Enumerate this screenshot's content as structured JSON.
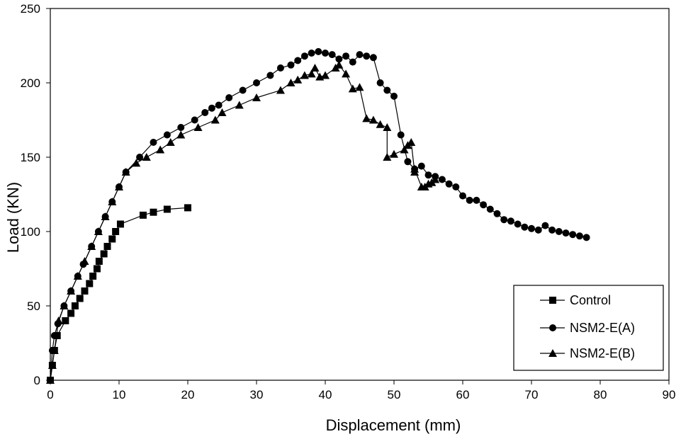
{
  "chart_data": {
    "type": "line",
    "title": "",
    "xlabel": "Displacement (mm)",
    "ylabel": "Load (KN)",
    "xlim": [
      0,
      90
    ],
    "ylim": [
      0,
      250
    ],
    "x_ticks": [
      0,
      10,
      20,
      30,
      40,
      50,
      60,
      70,
      80,
      90
    ],
    "y_ticks": [
      0,
      50,
      100,
      150,
      200,
      250
    ],
    "grid": false,
    "legend_position": "bottom-right",
    "series": [
      {
        "name": "Control",
        "marker": "square",
        "color": "#000000",
        "points": [
          [
            0,
            0
          ],
          [
            0.3,
            10
          ],
          [
            0.6,
            20
          ],
          [
            1,
            30
          ],
          [
            2.2,
            40
          ],
          [
            3,
            45
          ],
          [
            3.6,
            50
          ],
          [
            4.3,
            55
          ],
          [
            5,
            60
          ],
          [
            5.7,
            65
          ],
          [
            6.2,
            70
          ],
          [
            6.8,
            75
          ],
          [
            7.1,
            80
          ],
          [
            7.8,
            85
          ],
          [
            8.3,
            90
          ],
          [
            9,
            95
          ],
          [
            9.5,
            100
          ],
          [
            10.2,
            105
          ],
          [
            13.5,
            111
          ],
          [
            15,
            113
          ],
          [
            17,
            115
          ],
          [
            20,
            116
          ]
        ]
      },
      {
        "name": "NSM2-E(A)",
        "marker": "circle",
        "color": "#000000",
        "points": [
          [
            0,
            0
          ],
          [
            0.3,
            20
          ],
          [
            0.6,
            30
          ],
          [
            1.1,
            38
          ],
          [
            2,
            50
          ],
          [
            3,
            60
          ],
          [
            4,
            70
          ],
          [
            4.8,
            78
          ],
          [
            6,
            90
          ],
          [
            7,
            100
          ],
          [
            8,
            110
          ],
          [
            9,
            120
          ],
          [
            10,
            130
          ],
          [
            11,
            140
          ],
          [
            13,
            150
          ],
          [
            15,
            160
          ],
          [
            17,
            165
          ],
          [
            19,
            170
          ],
          [
            21,
            175
          ],
          [
            22.5,
            180
          ],
          [
            23.5,
            183
          ],
          [
            24.5,
            185
          ],
          [
            26,
            190
          ],
          [
            28,
            195
          ],
          [
            30,
            200
          ],
          [
            32,
            205
          ],
          [
            33.5,
            210
          ],
          [
            35,
            212
          ],
          [
            36,
            215
          ],
          [
            37,
            218
          ],
          [
            38,
            220
          ],
          [
            39,
            221
          ],
          [
            40,
            220
          ],
          [
            41,
            219
          ],
          [
            42,
            216
          ],
          [
            43,
            218
          ],
          [
            44,
            214
          ],
          [
            45,
            219
          ],
          [
            46,
            218
          ],
          [
            47,
            217
          ],
          [
            48,
            200
          ],
          [
            49,
            195
          ],
          [
            50,
            191
          ],
          [
            51,
            165
          ],
          [
            52,
            147
          ],
          [
            53,
            142
          ],
          [
            54,
            144
          ],
          [
            55,
            138
          ],
          [
            56,
            137
          ],
          [
            57,
            135
          ],
          [
            58,
            132
          ],
          [
            59,
            130
          ],
          [
            60,
            124
          ],
          [
            61,
            121
          ],
          [
            62,
            121
          ],
          [
            63,
            118
          ],
          [
            64,
            115
          ],
          [
            65,
            112
          ],
          [
            66,
            108
          ],
          [
            67,
            107
          ],
          [
            68,
            105
          ],
          [
            69,
            103
          ],
          [
            70,
            102
          ],
          [
            71,
            101
          ],
          [
            72,
            104
          ],
          [
            73,
            101
          ],
          [
            74,
            100
          ],
          [
            75,
            99
          ],
          [
            76,
            98
          ],
          [
            77,
            97
          ],
          [
            78,
            96
          ]
        ]
      },
      {
        "name": "NSM2-E(B)",
        "marker": "triangle",
        "color": "#000000",
        "points": [
          [
            0,
            0
          ],
          [
            0.3,
            10
          ],
          [
            0.6,
            20
          ],
          [
            1.2,
            40
          ],
          [
            2,
            50
          ],
          [
            3,
            60
          ],
          [
            4,
            70
          ],
          [
            5,
            80
          ],
          [
            6,
            90
          ],
          [
            7,
            100
          ],
          [
            8,
            110
          ],
          [
            9,
            120
          ],
          [
            10,
            130
          ],
          [
            11,
            140
          ],
          [
            12.5,
            146
          ],
          [
            14,
            150
          ],
          [
            16,
            155
          ],
          [
            17.5,
            160
          ],
          [
            19,
            165
          ],
          [
            21.5,
            170
          ],
          [
            24,
            175
          ],
          [
            25,
            180
          ],
          [
            27.5,
            185
          ],
          [
            30,
            190
          ],
          [
            33.5,
            195
          ],
          [
            35,
            200
          ],
          [
            36,
            202
          ],
          [
            37,
            205
          ],
          [
            38,
            206
          ],
          [
            38.5,
            210
          ],
          [
            39.2,
            204
          ],
          [
            40,
            205
          ],
          [
            41.5,
            210
          ],
          [
            42,
            212
          ],
          [
            43,
            206
          ],
          [
            44,
            196
          ],
          [
            45,
            197
          ],
          [
            46,
            176
          ],
          [
            47,
            175
          ],
          [
            48,
            172
          ],
          [
            49,
            170
          ],
          [
            49,
            150
          ],
          [
            50,
            152
          ],
          [
            51.5,
            155
          ],
          [
            52,
            158
          ],
          [
            52.5,
            160
          ],
          [
            53,
            140
          ],
          [
            53,
            142
          ],
          [
            54,
            130
          ],
          [
            54.5,
            130
          ],
          [
            55,
            132
          ],
          [
            55.5,
            133
          ],
          [
            56,
            135
          ]
        ]
      }
    ]
  }
}
